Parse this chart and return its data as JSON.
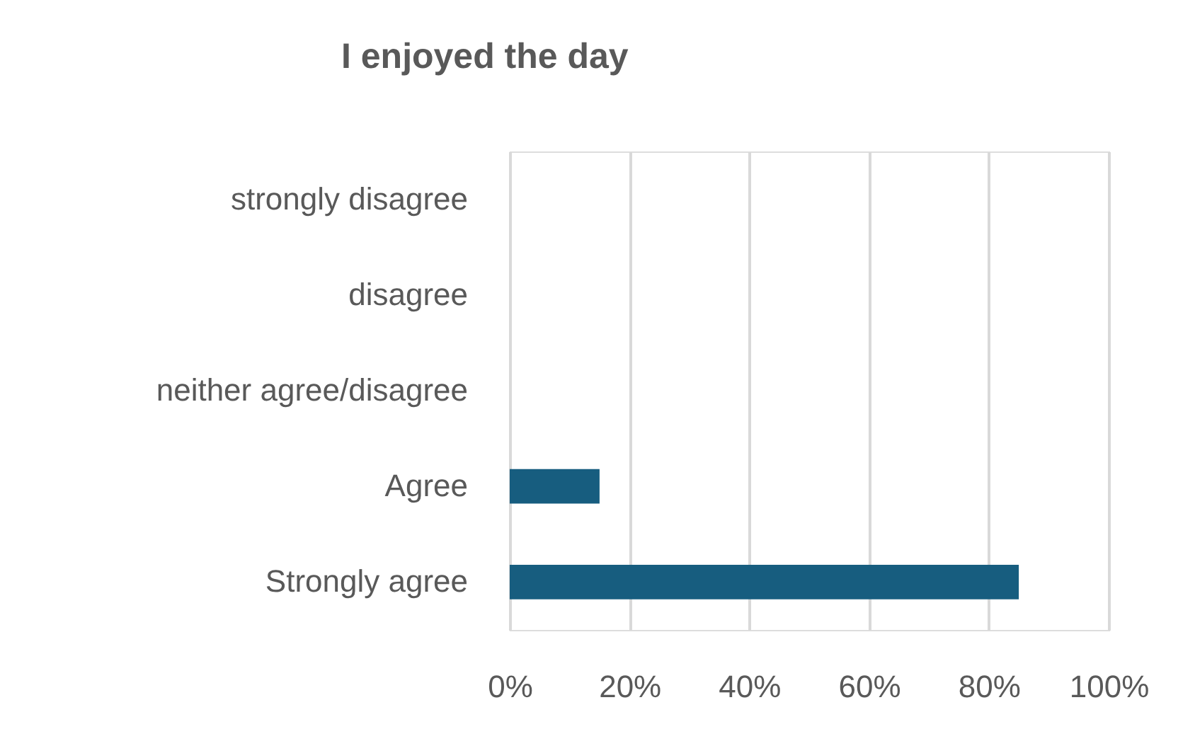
{
  "chart_data": {
    "type": "bar",
    "orientation": "horizontal",
    "title": "I enjoyed the day",
    "categories": [
      "strongly disagree",
      "disagree",
      "neither agree/disagree",
      "Agree",
      "Strongly agree"
    ],
    "values": [
      0,
      0,
      0,
      15,
      85
    ],
    "color": "#175d7f",
    "xlim": [
      0,
      100
    ],
    "xticks": [
      {
        "value": 0,
        "label": "0%"
      },
      {
        "value": 20,
        "label": "20%"
      },
      {
        "value": 40,
        "label": "40%"
      },
      {
        "value": 60,
        "label": "60%"
      },
      {
        "value": 80,
        "label": "80%"
      },
      {
        "value": 100,
        "label": "100%"
      }
    ],
    "grid": "x"
  }
}
